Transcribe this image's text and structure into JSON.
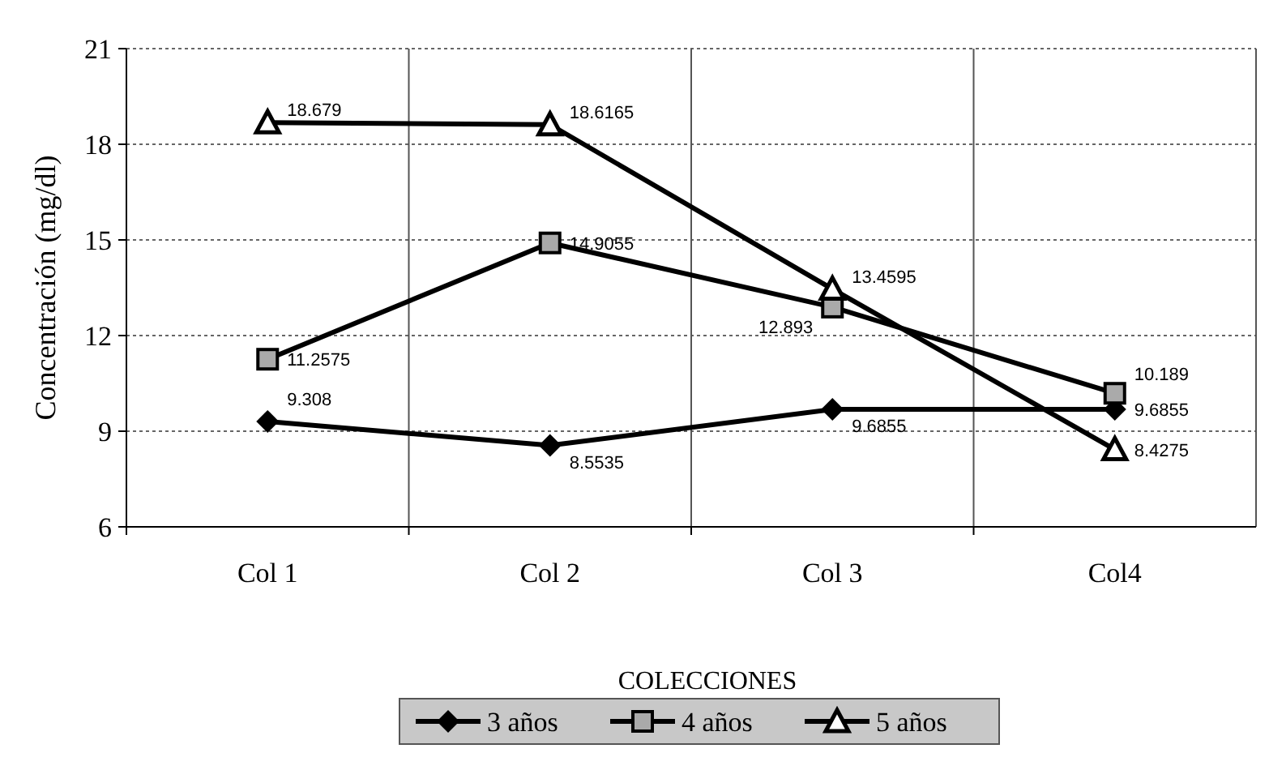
{
  "chart_data": {
    "type": "line",
    "xlabel": "COLECCIONES",
    "ylabel": "Concentración (mg/dl)",
    "categories": [
      "Col 1",
      "Col 2",
      "Col 3",
      "Col4"
    ],
    "series": [
      {
        "name": "3 años",
        "color": "#000000",
        "marker": "diamond",
        "values": [
          9.308,
          8.5535,
          9.6855,
          9.6855
        ]
      },
      {
        "name": "4 años",
        "color": "#000000",
        "marker": "square",
        "values": [
          11.2575,
          14.9055,
          12.893,
          10.189
        ]
      },
      {
        "name": "5 años",
        "color": "#000000",
        "marker": "triangle",
        "values": [
          18.679,
          18.6165,
          13.4595,
          8.4275
        ]
      }
    ],
    "ylim": [
      6,
      21
    ],
    "yticks": [
      6,
      9,
      12,
      15,
      18,
      21
    ],
    "grid": true,
    "legend": "bottom",
    "data_labels": true
  }
}
